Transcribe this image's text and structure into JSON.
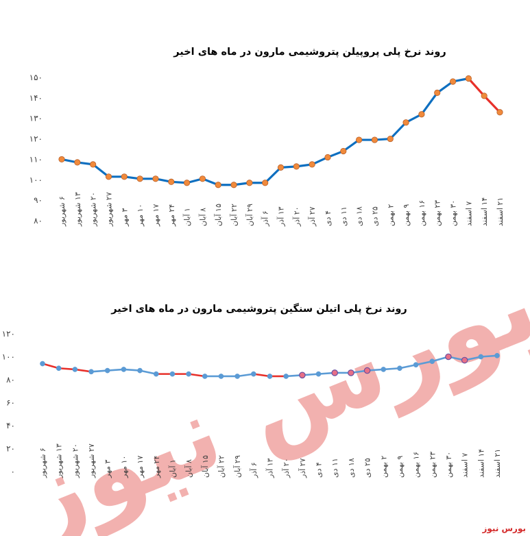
{
  "watermark": {
    "text": "بورس نیوز",
    "color": "#e8736e"
  },
  "source_label": "بورس نیوز",
  "colors": {
    "blue_line": "#0e6fc0",
    "red_line": "#e8302a",
    "orange_marker": "#f08a3c",
    "light_blue_line": "#5b9bd5",
    "axis_text": "#404040"
  },
  "chart_data": [
    {
      "type": "line",
      "title": "روند نرخ پلی پروپیلن پتروشیمی مارون در ماه های اخیر",
      "ylim": [
        80,
        150
      ],
      "yticks": [
        "۱۵۰",
        "۱۴۰",
        "۱۳۰",
        "۱۲۰",
        "۱۱۰",
        "۱۰۰",
        "۹۰",
        "۸۰"
      ],
      "ytick_values": [
        150,
        140,
        130,
        120,
        110,
        100,
        90,
        80
      ],
      "categories": [
        "۶ شهریور",
        "۱۳ شهریور",
        "۲۰ شهریور",
        "۲۷ شهریور",
        "۳ مهر",
        "۱۰ مهر",
        "۱۷ مهر",
        "۲۴ مهر",
        "۱ آبان",
        "۸ آبان",
        "۱۵ آبان",
        "۲۲ آبان",
        "۲۹ آبان",
        "۶ آذر",
        "۱۳ آذر",
        "۲۰ آذر",
        "۲۷ آذر",
        "۴ دی",
        "۱۱ دی",
        "۱۸ دی",
        "۲۵ دی",
        "۲ بهمن",
        "۹ بهمن",
        "۱۶ بهمن",
        "۲۳ بهمن",
        "۳۰ بهمن",
        "۷ اسفند",
        "۱۴ اسفند",
        "۲۱ اسفند"
      ],
      "values": [
        110,
        108.5,
        107.5,
        101.5,
        101.5,
        100.5,
        100.5,
        99,
        98.5,
        100.5,
        97.5,
        97.5,
        98.5,
        98.5,
        106,
        106.5,
        107.5,
        111,
        114,
        119.5,
        119.5,
        120,
        128,
        132,
        142.5,
        148,
        149.5,
        141,
        133
      ],
      "red_from_index": 26,
      "grid": false,
      "legend": "none"
    },
    {
      "type": "line",
      "title": "روند نرخ پلی اتیلن سنگین پتروشیمی مارون در ماه های اخیر",
      "ylim": [
        0,
        120
      ],
      "yticks": [
        "۱۲۰",
        "۱۰۰",
        "۸۰",
        "۶۰",
        "۴۰",
        "۲۰",
        "۰"
      ],
      "ytick_values": [
        120,
        100,
        80,
        60,
        40,
        20,
        0
      ],
      "categories": [
        "۶ شهریور",
        "۱۳ شهریور",
        "۲۰ شهریور",
        "۲۷ شهریور",
        "۳ مهر",
        "۱۰ مهر",
        "۱۷ مهر",
        "۲۴ مهر",
        "۱ آبان",
        "۸ آبان",
        "۱۵ آبان",
        "۲۲ آبان",
        "۲۹ آبان",
        "۶ آذر",
        "۱۳ آذر",
        "۲۰ آذر",
        "۲۷ آذر",
        "۴ دی",
        "۱۱ دی",
        "۱۸ دی",
        "۲۵ دی",
        "۲ بهمن",
        "۹ بهمن",
        "۱۶ بهمن",
        "۲۳ بهمن",
        "۳۰ بهمن",
        "۷ اسفند",
        "۱۴ اسفند",
        "۲۱ اسفند"
      ],
      "values": [
        94,
        90,
        89,
        87,
        88,
        89,
        88,
        85,
        85,
        85,
        83,
        83,
        83,
        85,
        83,
        83,
        84,
        85,
        86,
        86,
        88,
        89,
        90,
        93,
        96,
        100,
        97,
        100,
        101
      ],
      "red_segments": [
        [
          0,
          3
        ],
        [
          7,
          10
        ],
        [
          13,
          15
        ]
      ],
      "highlight_markers": [
        16,
        18,
        19,
        20,
        25,
        26
      ],
      "grid": false,
      "legend": "none"
    }
  ]
}
